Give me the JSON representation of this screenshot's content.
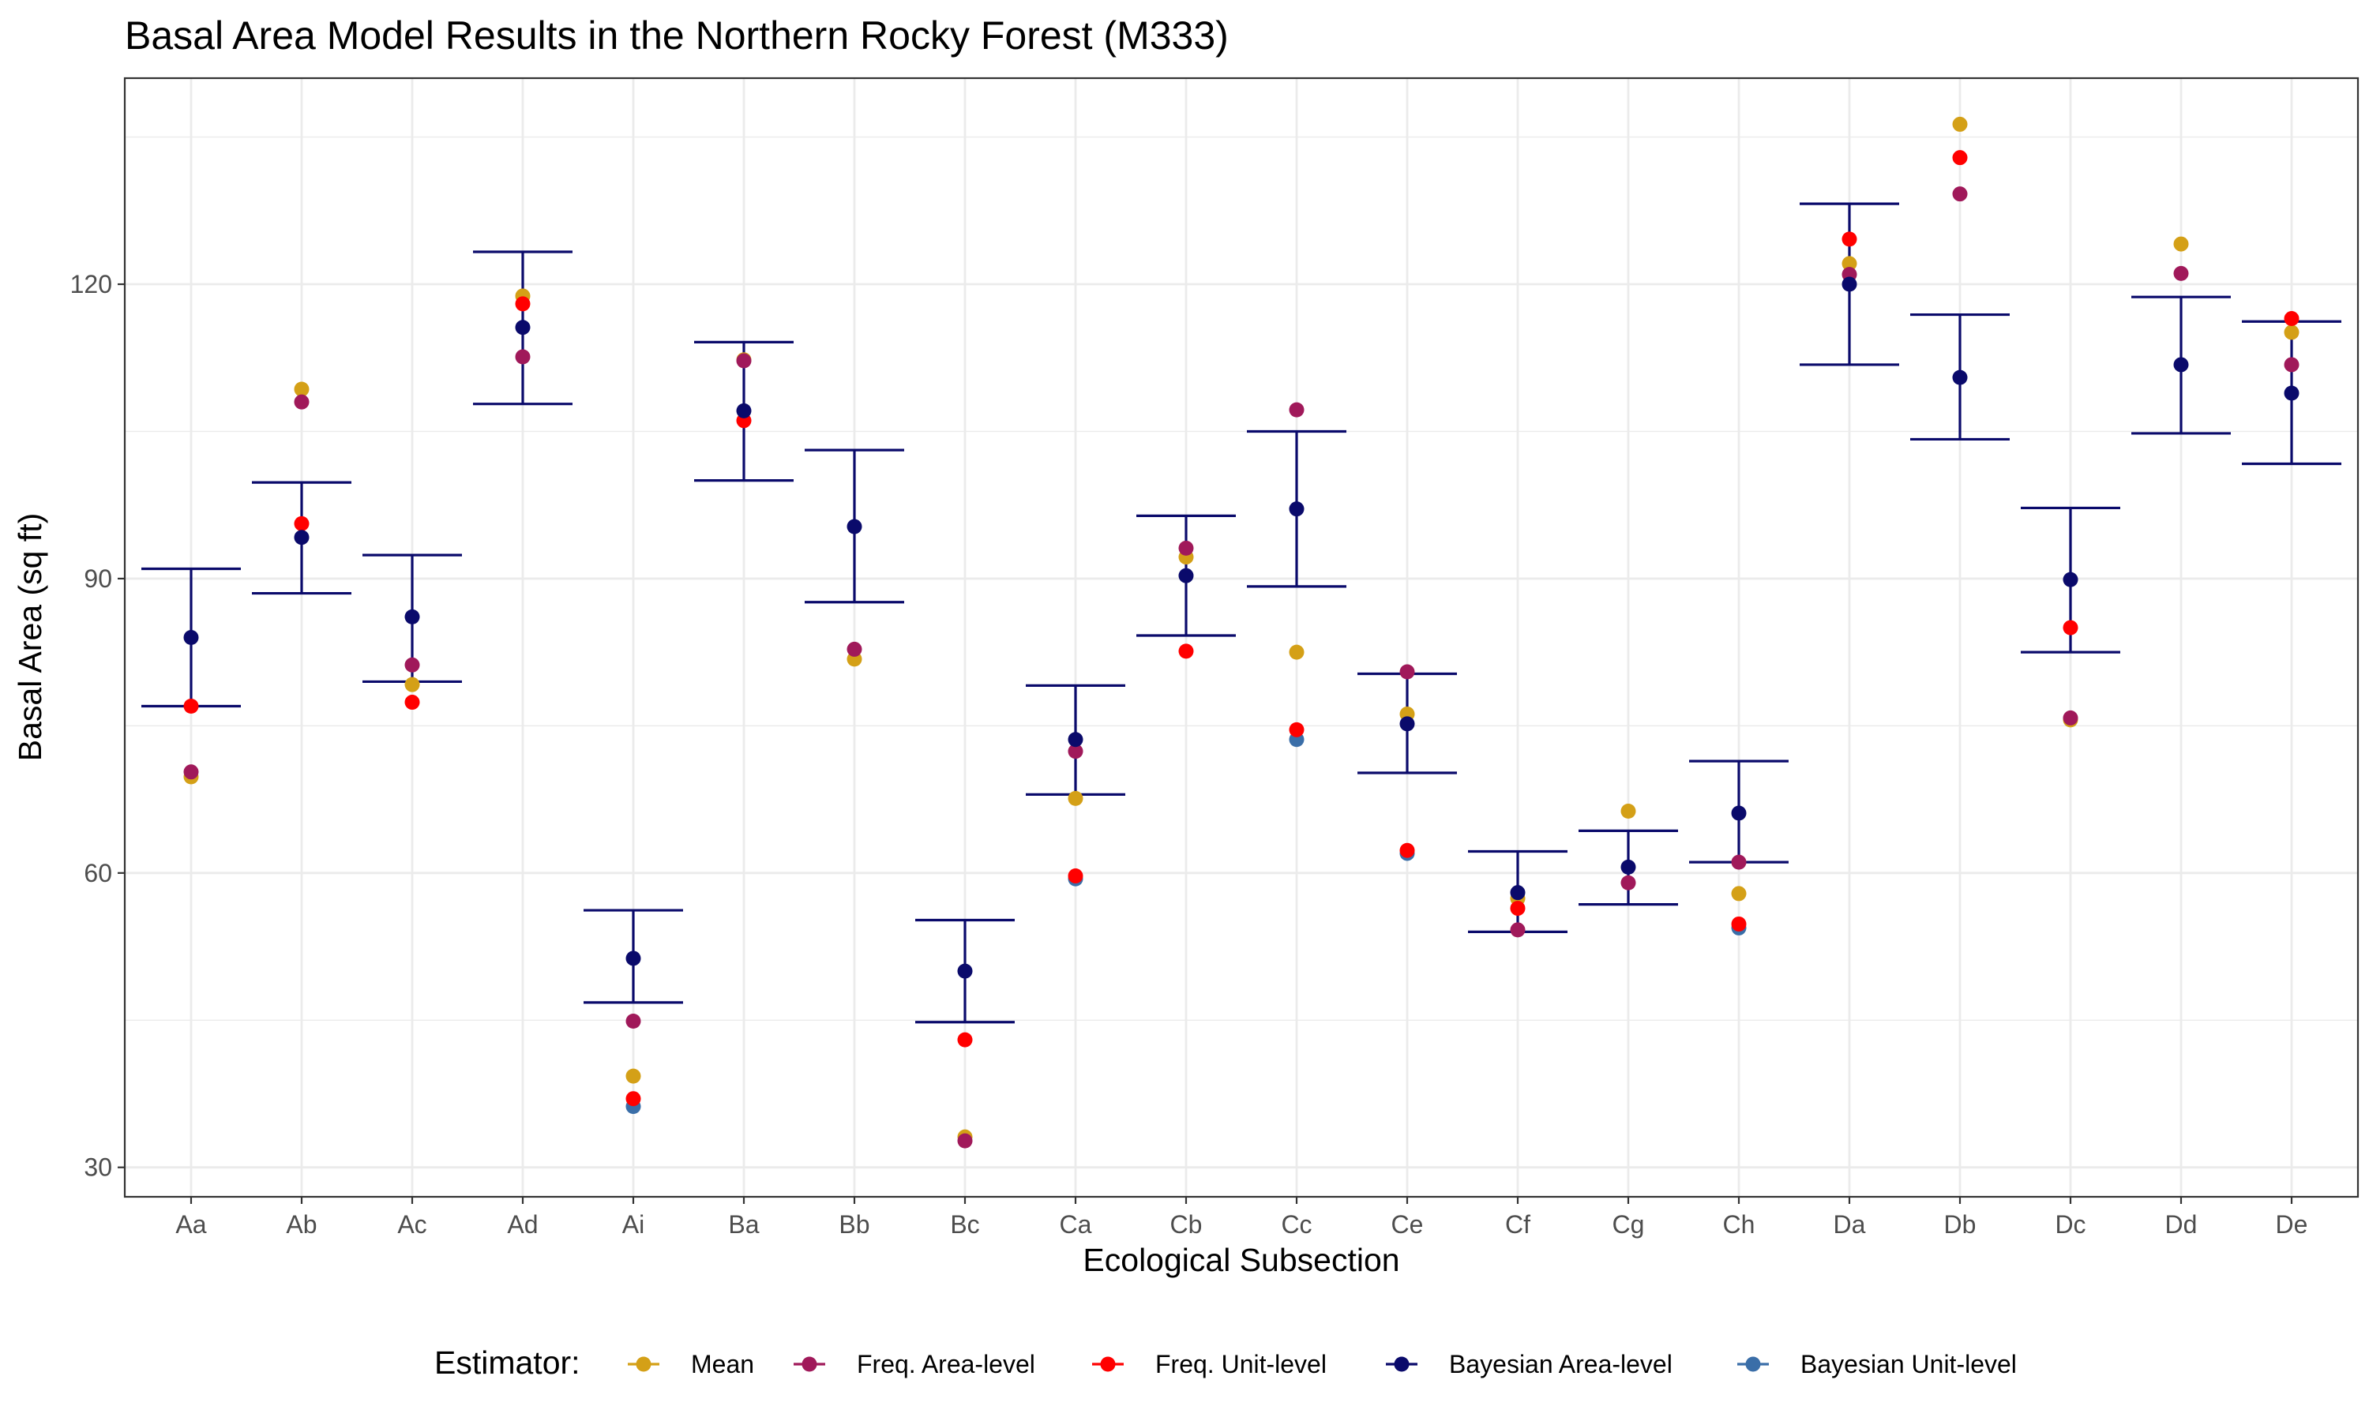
{
  "chart_data": {
    "type": "scatter",
    "title": "Basal Area Model Results in the Northern Rocky Forest (M333)",
    "xlabel": "Ecological Subsection",
    "ylabel": "Basal Area (sq ft)",
    "ylim": [
      27,
      141
    ],
    "yticks": [
      30,
      60,
      90,
      120
    ],
    "grid": true,
    "legend": {
      "title": "Estimator:",
      "position": "bottom"
    },
    "categories": [
      "Aa",
      "Ab",
      "Ac",
      "Ad",
      "Ai",
      "Ba",
      "Bb",
      "Bc",
      "Ca",
      "Cb",
      "Cc",
      "Ce",
      "Cf",
      "Cg",
      "Ch",
      "Da",
      "Db",
      "Dc",
      "Dd",
      "De"
    ],
    "series": [
      {
        "name": "Mean",
        "color": "#D4A017",
        "values": [
          69.8,
          109.3,
          79.2,
          118.8,
          39.3,
          112.3,
          81.8,
          33.1,
          67.6,
          92.2,
          82.5,
          76.2,
          57.4,
          66.3,
          57.9,
          122.1,
          136.3,
          75.6,
          124.1,
          115.1
        ]
      },
      {
        "name": "Freq. Area-level",
        "color": "#A0195A",
        "values": [
          70.3,
          108.0,
          81.2,
          112.6,
          44.9,
          112.2,
          82.8,
          32.7,
          72.4,
          93.1,
          107.2,
          80.5,
          54.2,
          59.0,
          61.1,
          121.0,
          129.2,
          75.8,
          121.1,
          111.8
        ]
      },
      {
        "name": "Freq. Unit-level",
        "color": "#FF0000",
        "values": [
          77.0,
          95.6,
          77.4,
          118.0,
          37.0,
          106.1,
          null,
          43.0,
          59.7,
          82.6,
          74.6,
          62.3,
          56.4,
          null,
          54.8,
          124.6,
          132.9,
          85.0,
          null,
          116.5
        ]
      },
      {
        "name": "Bayesian Unit-level",
        "color": "#3A6EA8",
        "values": [
          null,
          null,
          null,
          null,
          36.2,
          null,
          null,
          null,
          59.4,
          null,
          73.6,
          62.0,
          null,
          null,
          54.4,
          null,
          null,
          null,
          null,
          null
        ]
      },
      {
        "name": "Bayesian Area-level",
        "color": "#0A0A6B",
        "values": [
          84.0,
          94.2,
          86.1,
          115.6,
          51.3,
          107.1,
          95.3,
          50.0,
          73.6,
          90.3,
          97.1,
          75.2,
          58.0,
          60.6,
          66.1,
          120.0,
          110.5,
          89.9,
          111.8,
          108.9
        ],
        "lower": [
          77.0,
          88.5,
          79.5,
          107.8,
          46.8,
          100.0,
          87.6,
          44.8,
          68.0,
          84.2,
          89.2,
          70.2,
          54.0,
          56.8,
          61.1,
          111.8,
          104.2,
          82.5,
          104.8,
          101.7
        ],
        "upper": [
          91.0,
          99.8,
          92.4,
          123.3,
          56.2,
          114.1,
          103.1,
          55.2,
          79.1,
          96.4,
          105.0,
          80.3,
          62.2,
          64.3,
          71.4,
          128.2,
          116.9,
          97.2,
          118.7,
          116.2
        ]
      }
    ],
    "legend_order": [
      "Mean",
      "Freq. Area-level",
      "Freq. Unit-level",
      "Bayesian Area-level",
      "Bayesian Unit-level"
    ]
  }
}
